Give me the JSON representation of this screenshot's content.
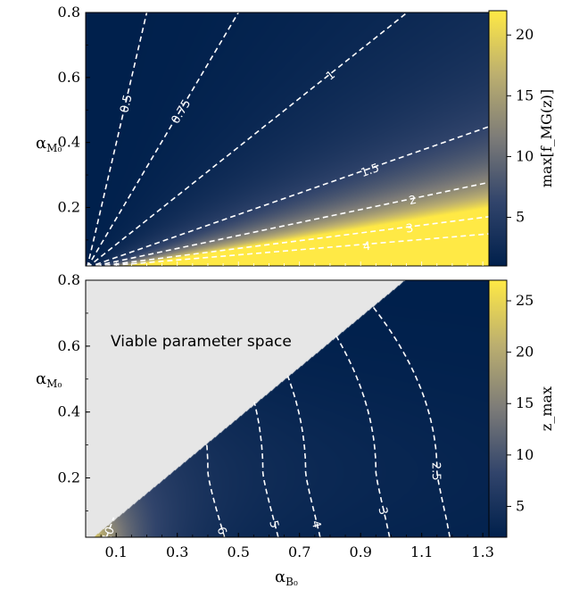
{
  "chart_data": [
    {
      "type": "heatmap",
      "panel": "top",
      "ylabel_main": "α",
      "ylabel_sub": "M₀",
      "xlim": [
        0.0,
        1.32
      ],
      "ylim": [
        0.02,
        0.8
      ],
      "yticks": [
        "0.2",
        "0.4",
        "0.6",
        "0.8"
      ],
      "colorbar": {
        "label": "max[f_MG(z)]",
        "range": [
          1,
          22
        ],
        "ticks": [
          "5",
          "10",
          "15",
          "20"
        ],
        "colormap": "cividis"
      },
      "contours": [
        {
          "label": "0.5",
          "slope": 4.0
        },
        {
          "label": "0.75",
          "slope": 1.6
        },
        {
          "label": "1",
          "slope": 0.76
        },
        {
          "label": "1.5",
          "slope": 0.34
        },
        {
          "label": "2",
          "slope": 0.21
        },
        {
          "label": "3",
          "slope": 0.13
        },
        {
          "label": "4",
          "slope": 0.09
        }
      ]
    },
    {
      "type": "heatmap",
      "panel": "bottom",
      "xlabel_main": "α",
      "xlabel_sub": "B₀",
      "ylabel_main": "α",
      "ylabel_sub": "M₀",
      "xlim": [
        0.0,
        1.32
      ],
      "ylim": [
        0.02,
        0.8
      ],
      "xticks": [
        "0.1",
        "0.3",
        "0.5",
        "0.7",
        "0.9",
        "1.1",
        "1.3"
      ],
      "yticks": [
        "0.2",
        "0.4",
        "0.6",
        "0.8"
      ],
      "annotation": "Viable parameter space",
      "colorbar": {
        "label": "z_max",
        "range": [
          2,
          27
        ],
        "ticks": [
          "5",
          "10",
          "15",
          "20",
          "25"
        ],
        "colormap": "cividis"
      },
      "contours": [
        {
          "label": "10",
          "x0": 0.06,
          "a": 0.05
        },
        {
          "label": "6",
          "x0": 0.35,
          "a": 1.5
        },
        {
          "label": "5",
          "x0": 0.53,
          "a": 1.8
        },
        {
          "label": "4",
          "x0": 0.67,
          "a": 2.0
        },
        {
          "label": "3",
          "x0": 0.9,
          "a": 2.2
        },
        {
          "label": "2.5",
          "x0": 1.1,
          "a": 2.4
        }
      ]
    }
  ]
}
